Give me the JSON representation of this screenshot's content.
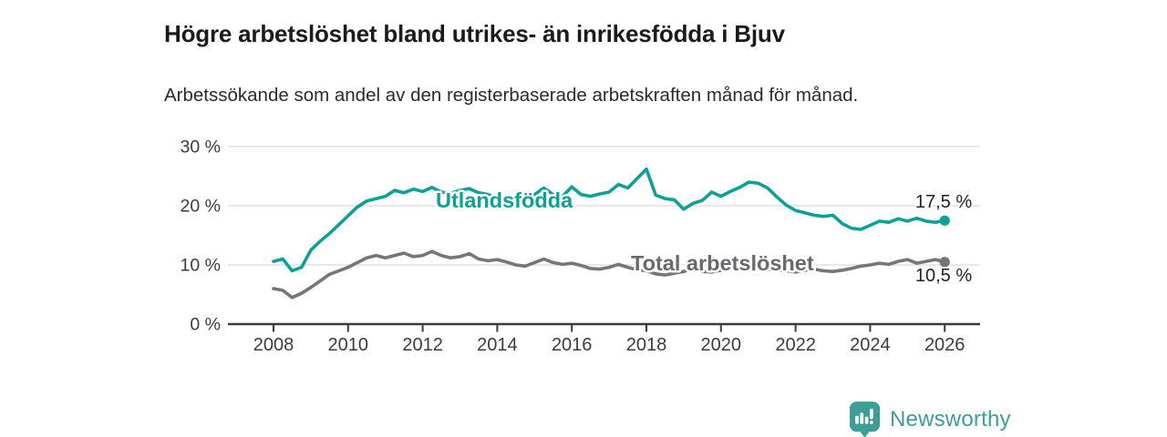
{
  "header": {
    "title": "Högre arbetslöshet bland utrikes- än inrikesfödda i Bjuv",
    "subtitle": "Arbetssökande som andel av den registerbaserade arbetskraften månad för månad."
  },
  "chart_data": {
    "type": "line",
    "title": "Högre arbetslöshet bland utrikes- än inrikesfödda i Bjuv",
    "xlabel": "",
    "ylabel": "%",
    "ylim": [
      0,
      30
    ],
    "xlim": [
      2006.8,
      2026.95
    ],
    "grid": "horizontal-only",
    "legend_position": "inline-labels-on-lines",
    "x_ticks": [
      "2008",
      "2010",
      "2012",
      "2014",
      "2016",
      "2018",
      "2020",
      "2022",
      "2024",
      "2026"
    ],
    "y_ticks": [
      {
        "v": 30,
        "label": "30 %"
      },
      {
        "v": 20,
        "label": "20 %"
      },
      {
        "v": 10,
        "label": "10 %"
      },
      {
        "v": 0,
        "label": "0 %"
      }
    ],
    "series": [
      {
        "name": "Utlandsfödda",
        "color": "#0ba295",
        "end_label": "17,5 %",
        "end_value": 17.5,
        "points": [
          [
            2008.0,
            10.6
          ],
          [
            2008.25,
            11.0
          ],
          [
            2008.5,
            9.0
          ],
          [
            2008.75,
            9.6
          ],
          [
            2009.0,
            12.5
          ],
          [
            2009.25,
            14.0
          ],
          [
            2009.5,
            15.3
          ],
          [
            2009.75,
            16.8
          ],
          [
            2010.0,
            18.3
          ],
          [
            2010.25,
            19.8
          ],
          [
            2010.5,
            20.8
          ],
          [
            2010.75,
            21.2
          ],
          [
            2011.0,
            21.6
          ],
          [
            2011.25,
            22.6
          ],
          [
            2011.5,
            22.2
          ],
          [
            2011.75,
            22.8
          ],
          [
            2012.0,
            22.4
          ],
          [
            2012.25,
            23.1
          ],
          [
            2012.5,
            22.3
          ],
          [
            2012.75,
            22.1
          ],
          [
            2013.0,
            22.6
          ],
          [
            2013.25,
            22.9
          ],
          [
            2013.5,
            22.2
          ],
          [
            2013.75,
            21.9
          ],
          [
            2014.0,
            21.3
          ],
          [
            2014.25,
            20.3
          ],
          [
            2014.5,
            21.2
          ],
          [
            2014.75,
            21.6
          ],
          [
            2015.0,
            21.9
          ],
          [
            2015.25,
            23.0
          ],
          [
            2015.5,
            21.9
          ],
          [
            2015.75,
            21.6
          ],
          [
            2016.0,
            23.2
          ],
          [
            2016.25,
            21.9
          ],
          [
            2016.5,
            21.6
          ],
          [
            2016.75,
            22.0
          ],
          [
            2017.0,
            22.3
          ],
          [
            2017.25,
            23.6
          ],
          [
            2017.5,
            23.0
          ],
          [
            2017.75,
            24.6
          ],
          [
            2018.0,
            26.2
          ],
          [
            2018.25,
            21.8
          ],
          [
            2018.5,
            21.2
          ],
          [
            2018.75,
            21.0
          ],
          [
            2019.0,
            19.4
          ],
          [
            2019.25,
            20.4
          ],
          [
            2019.5,
            20.9
          ],
          [
            2019.75,
            22.3
          ],
          [
            2020.0,
            21.6
          ],
          [
            2020.25,
            22.4
          ],
          [
            2020.5,
            23.1
          ],
          [
            2020.75,
            24.0
          ],
          [
            2021.0,
            23.8
          ],
          [
            2021.25,
            23.0
          ],
          [
            2021.5,
            21.5
          ],
          [
            2021.75,
            20.1
          ],
          [
            2022.0,
            19.2
          ],
          [
            2022.25,
            18.8
          ],
          [
            2022.5,
            18.4
          ],
          [
            2022.75,
            18.2
          ],
          [
            2023.0,
            18.4
          ],
          [
            2023.25,
            17.0
          ],
          [
            2023.5,
            16.2
          ],
          [
            2023.75,
            16.0
          ],
          [
            2024.0,
            16.7
          ],
          [
            2024.25,
            17.4
          ],
          [
            2024.5,
            17.2
          ],
          [
            2024.75,
            17.8
          ],
          [
            2025.0,
            17.4
          ],
          [
            2025.25,
            17.9
          ],
          [
            2025.5,
            17.4
          ],
          [
            2025.75,
            17.2
          ],
          [
            2026.0,
            17.5
          ]
        ]
      },
      {
        "name": "Total arbetslöshet",
        "color": "#76767a",
        "end_label": "10,5 %",
        "end_value": 10.5,
        "points": [
          [
            2008.0,
            6.0
          ],
          [
            2008.25,
            5.7
          ],
          [
            2008.5,
            4.5
          ],
          [
            2008.75,
            5.2
          ],
          [
            2009.0,
            6.2
          ],
          [
            2009.25,
            7.3
          ],
          [
            2009.5,
            8.4
          ],
          [
            2009.75,
            9.0
          ],
          [
            2010.0,
            9.6
          ],
          [
            2010.25,
            10.4
          ],
          [
            2010.5,
            11.2
          ],
          [
            2010.75,
            11.6
          ],
          [
            2011.0,
            11.2
          ],
          [
            2011.25,
            11.6
          ],
          [
            2011.5,
            12.0
          ],
          [
            2011.75,
            11.4
          ],
          [
            2012.0,
            11.6
          ],
          [
            2012.25,
            12.3
          ],
          [
            2012.5,
            11.6
          ],
          [
            2012.75,
            11.2
          ],
          [
            2013.0,
            11.4
          ],
          [
            2013.25,
            11.9
          ],
          [
            2013.5,
            11.0
          ],
          [
            2013.75,
            10.7
          ],
          [
            2014.0,
            10.9
          ],
          [
            2014.25,
            10.5
          ],
          [
            2014.5,
            10.0
          ],
          [
            2014.75,
            9.8
          ],
          [
            2015.0,
            10.4
          ],
          [
            2015.25,
            11.0
          ],
          [
            2015.5,
            10.4
          ],
          [
            2015.75,
            10.1
          ],
          [
            2016.0,
            10.3
          ],
          [
            2016.25,
            9.9
          ],
          [
            2016.5,
            9.4
          ],
          [
            2016.75,
            9.3
          ],
          [
            2017.0,
            9.6
          ],
          [
            2017.25,
            10.1
          ],
          [
            2017.5,
            9.6
          ],
          [
            2017.75,
            9.2
          ],
          [
            2018.0,
            9.0
          ],
          [
            2018.25,
            8.5
          ],
          [
            2018.5,
            8.3
          ],
          [
            2018.75,
            8.6
          ],
          [
            2019.0,
            8.9
          ],
          [
            2019.25,
            9.4
          ],
          [
            2019.5,
            8.9
          ],
          [
            2019.75,
            8.8
          ],
          [
            2020.0,
            9.1
          ],
          [
            2020.25,
            9.9
          ],
          [
            2020.5,
            9.6
          ],
          [
            2020.75,
            9.4
          ],
          [
            2021.0,
            9.6
          ],
          [
            2021.25,
            9.3
          ],
          [
            2021.5,
            9.1
          ],
          [
            2021.75,
            9.0
          ],
          [
            2022.0,
            8.8
          ],
          [
            2022.25,
            9.1
          ],
          [
            2022.5,
            9.3
          ],
          [
            2022.75,
            9.0
          ],
          [
            2023.0,
            8.9
          ],
          [
            2023.25,
            9.1
          ],
          [
            2023.5,
            9.4
          ],
          [
            2023.75,
            9.8
          ],
          [
            2024.0,
            10.0
          ],
          [
            2024.25,
            10.3
          ],
          [
            2024.5,
            10.1
          ],
          [
            2024.75,
            10.6
          ],
          [
            2025.0,
            10.9
          ],
          [
            2025.25,
            10.3
          ],
          [
            2025.5,
            10.6
          ],
          [
            2025.75,
            10.9
          ],
          [
            2026.0,
            10.5
          ]
        ]
      }
    ],
    "colors": {
      "grid": "#d9d9d9",
      "axis": "#3a3a3a",
      "tick_text": "#3c3c3c",
      "end_label_text": "#222222",
      "utlandsfodda_label": "#0ba295",
      "total_label": "#68686d"
    }
  },
  "footer": {
    "brand": "Newsworthy",
    "brand_color": "#3d9e98"
  }
}
